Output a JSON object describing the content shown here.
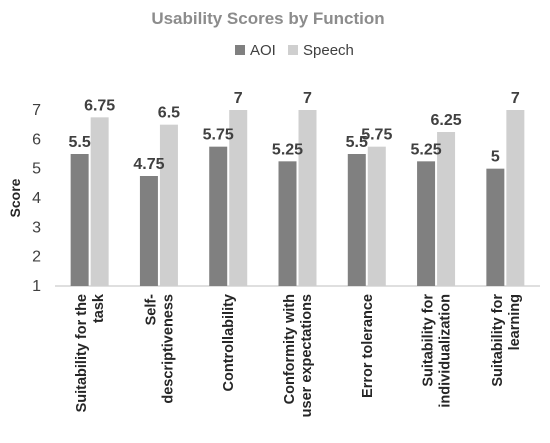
{
  "chart_data": {
    "type": "bar",
    "title": "Usability Scores by Function",
    "ylabel": "Score",
    "xlabel": "",
    "ylim": [
      1,
      7
    ],
    "yticks": [
      1,
      2,
      3,
      4,
      5,
      6,
      7
    ],
    "grid": false,
    "legend_position": "top",
    "categories": [
      [
        "Suitability for the",
        "task"
      ],
      [
        "Self-",
        "descriptiveness"
      ],
      [
        "Controllability"
      ],
      [
        "Conformity with",
        "user expectations"
      ],
      [
        "Error tolerance"
      ],
      [
        "Suitability for",
        "individualization"
      ],
      [
        "Suitability for",
        "learning"
      ]
    ],
    "series": [
      {
        "name": "AOI",
        "color": "#808080",
        "values": [
          5.5,
          4.75,
          5.75,
          5.25,
          5.5,
          5.25,
          5
        ],
        "labels": [
          "5.5",
          "4.75",
          "5.75",
          "5.25",
          "5.5",
          "5.25",
          "5"
        ]
      },
      {
        "name": "Speech",
        "color": "#cfcfcf",
        "values": [
          6.75,
          6.5,
          7,
          7,
          5.75,
          6.25,
          7
        ],
        "labels": [
          "6.75",
          "6.5",
          "7",
          "7",
          "5.75",
          "6.25",
          "7"
        ]
      }
    ]
  }
}
